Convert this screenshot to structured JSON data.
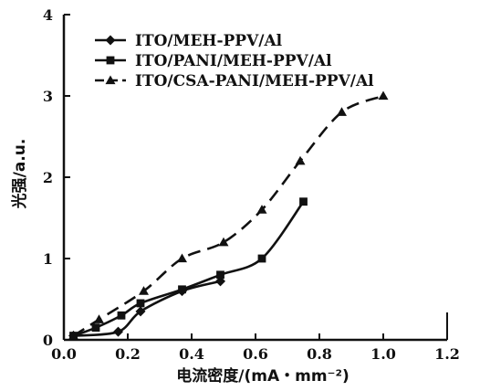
{
  "chart_data": {
    "type": "line",
    "title": "",
    "xlabel": "电流密度/(mA・mm⁻²)",
    "ylabel": "光强/a.u.",
    "xlim": [
      0.0,
      1.2
    ],
    "ylim": [
      0,
      4
    ],
    "x_ticks": [
      "0.0",
      "0.2",
      "0.4",
      "0.6",
      "0.8",
      "1.0",
      "1.2"
    ],
    "y_ticks": [
      "0",
      "1",
      "2",
      "3",
      "4"
    ],
    "grid": false,
    "legend_position": "top-left",
    "series": [
      {
        "name": "ITO/MEH-PPV/Al",
        "marker": "diamond",
        "line_style": "solid",
        "x": [
          0.03,
          0.17,
          0.24,
          0.37,
          0.49
        ],
        "y": [
          0.05,
          0.1,
          0.35,
          0.6,
          0.72
        ]
      },
      {
        "name": "ITO/PANI/MEH-PPV/Al",
        "marker": "square",
        "line_style": "solid",
        "x": [
          0.03,
          0.1,
          0.18,
          0.24,
          0.37,
          0.49,
          0.62,
          0.75
        ],
        "y": [
          0.05,
          0.15,
          0.3,
          0.45,
          0.62,
          0.8,
          1.0,
          1.7
        ]
      },
      {
        "name": "ITO/CSA-PANI/MEH-PPV/Al",
        "marker": "triangle",
        "line_style": "dashed",
        "x": [
          0.03,
          0.11,
          0.25,
          0.37,
          0.5,
          0.62,
          0.74,
          0.87,
          1.0
        ],
        "y": [
          0.05,
          0.25,
          0.6,
          1.0,
          1.2,
          1.6,
          2.2,
          2.8,
          3.0
        ]
      }
    ]
  }
}
